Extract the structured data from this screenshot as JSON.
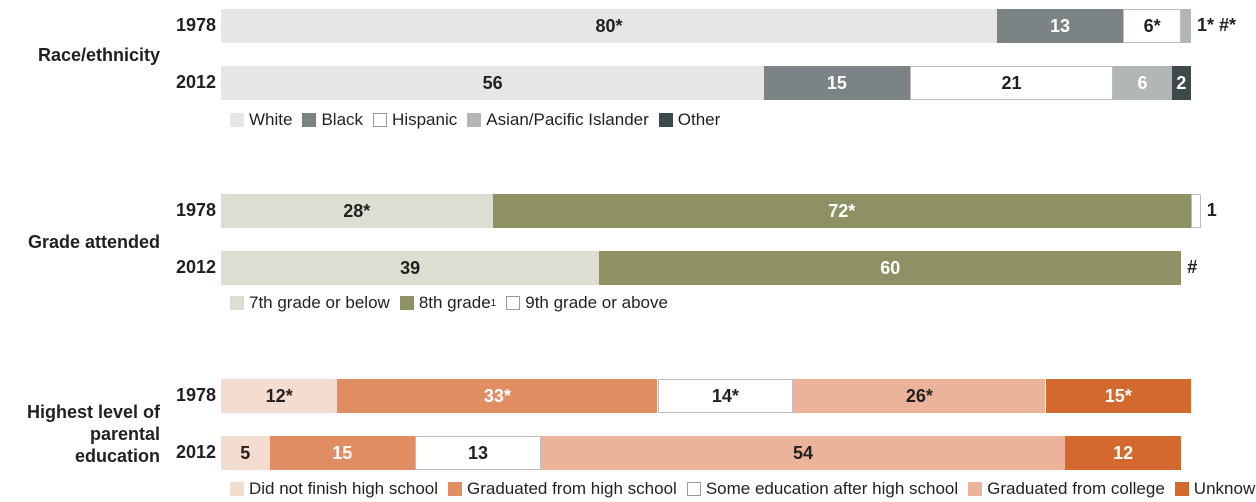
{
  "chart_data": [
    {
      "type": "bar",
      "orientation": "horizontal-stacked",
      "title": "Race/ethnicity",
      "categories": [
        "1978",
        "2012"
      ],
      "series": [
        {
          "name": "White",
          "color": "#e6e6e6",
          "values": [
            80,
            56
          ],
          "labels": [
            "80*",
            "56"
          ],
          "label_color": "#231f20"
        },
        {
          "name": "Black",
          "color": "#7b8384",
          "values": [
            13,
            15
          ],
          "labels": [
            "13",
            "15"
          ],
          "label_color": "#ffffff"
        },
        {
          "name": "Hispanic",
          "color": "#ffffff",
          "outlined": true,
          "values": [
            6,
            21
          ],
          "labels": [
            "6*",
            "21"
          ],
          "label_color": "#231f20"
        },
        {
          "name": "Asian/Pacific Islander",
          "color": "#b2b6b7",
          "values": [
            1,
            6
          ],
          "labels": [
            "1*",
            "6"
          ],
          "label_color": "#ffffff"
        },
        {
          "name": "Other",
          "color": "#3d4a4c",
          "values": [
            0,
            2
          ],
          "labels": [
            "#*",
            "2"
          ],
          "label_color": "#ffffff"
        }
      ],
      "tail_labels": [
        "1* #*",
        ""
      ],
      "legend_position": "bottom-left"
    },
    {
      "type": "bar",
      "orientation": "horizontal-stacked",
      "title": "Grade attended",
      "categories": [
        "1978",
        "2012"
      ],
      "series": [
        {
          "name": "7th grade or below",
          "color": "#ddddd1",
          "values": [
            28,
            39
          ],
          "labels": [
            "28*",
            "39"
          ],
          "label_color": "#231f20"
        },
        {
          "name": "8th grade",
          "footnote": "1",
          "color": "#8e9164",
          "values": [
            72,
            60
          ],
          "labels": [
            "72*",
            "60"
          ],
          "label_color": "#ffffff"
        },
        {
          "name": "9th grade or above",
          "color": "#ffffff",
          "outlined": true,
          "values": [
            1,
            0
          ],
          "labels": [
            "1",
            "#"
          ],
          "label_color": "#231f20"
        }
      ],
      "tail_labels": [
        "1",
        "#"
      ],
      "legend_position": "bottom-left"
    },
    {
      "type": "bar",
      "orientation": "horizontal-stacked",
      "title": "Highest level of parental education",
      "categories": [
        "1978",
        "2012"
      ],
      "series": [
        {
          "name": "Did not finish high school",
          "color": "#f3ddd1",
          "values": [
            12,
            5
          ],
          "labels": [
            "12*",
            "5"
          ],
          "label_color": "#231f20"
        },
        {
          "name": "Graduated from high school",
          "color": "#e08d64",
          "values": [
            33,
            15
          ],
          "labels": [
            "33*",
            "15"
          ],
          "label_color": "#ffffff"
        },
        {
          "name": "Some education after high school",
          "color": "#ffffff",
          "outlined": true,
          "values": [
            14,
            13
          ],
          "labels": [
            "14*",
            "13"
          ],
          "label_color": "#231f20"
        },
        {
          "name": "Graduated from college",
          "color": "#ebb39a",
          "values": [
            26,
            54
          ],
          "labels": [
            "26*",
            "54"
          ],
          "label_color": "#231f20"
        },
        {
          "name": "Unknown",
          "color": "#d3692e",
          "values": [
            15,
            12
          ],
          "labels": [
            "15*",
            "12"
          ],
          "label_color": "#ffffff"
        }
      ],
      "tail_labels": [
        "",
        ""
      ],
      "legend_position": "bottom-left"
    }
  ]
}
